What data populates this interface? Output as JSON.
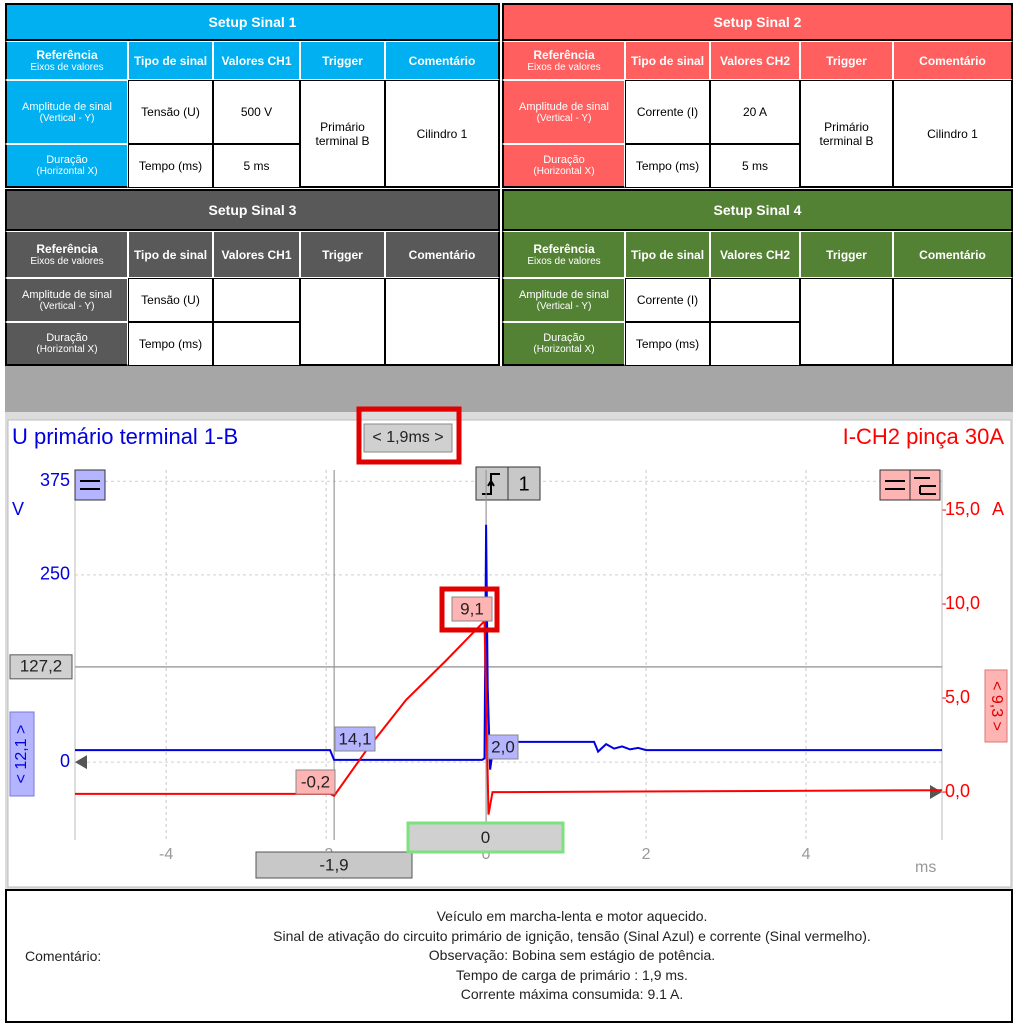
{
  "setups": [
    {
      "title": "Setup Sinal 1",
      "color": "#00b0f0",
      "ref_header": {
        "title": "Referência",
        "sub": "Eixos de valores"
      },
      "columns": [
        "Tipo de sinal",
        "Valores CH1",
        "Trigger",
        "Comentário"
      ],
      "rows": [
        {
          "ref": "Amplitude de sinal",
          "ref_sub": "(Vertical - Y)",
          "type": "Tensão (U)",
          "value": "500 V"
        },
        {
          "ref": "Duração",
          "ref_sub": "(Horizontal X)",
          "type": "Tempo (ms)",
          "value": "5 ms"
        }
      ],
      "trigger": "Primário terminal B",
      "comment": "Cilindro 1"
    },
    {
      "title": "Setup Sinal 2",
      "color": "#ff5f5f",
      "ref_header": {
        "title": "Referência",
        "sub": "Eixos de valores"
      },
      "columns": [
        "Tipo de sinal",
        "Valores CH2",
        "Trigger",
        "Comentário"
      ],
      "rows": [
        {
          "ref": "Amplitude de sinal",
          "ref_sub": "(Vertical - Y)",
          "type": "Corrente (I)",
          "value": "20 A"
        },
        {
          "ref": "Duração",
          "ref_sub": "(Horizontal X)",
          "type": "Tempo (ms)",
          "value": "5 ms"
        }
      ],
      "trigger": "Primário terminal B",
      "comment": "Cilindro 1"
    },
    {
      "title": "Setup Sinal 3",
      "color": "#595959",
      "ref_header": {
        "title": "Referência",
        "sub": "Eixos de valores"
      },
      "columns": [
        "Tipo de sinal",
        "Valores CH1",
        "Trigger",
        "Comentário"
      ],
      "rows": [
        {
          "ref": "Amplitude de sinal",
          "ref_sub": "(Vertical - Y)",
          "type": "Tensão (U)"
        },
        {
          "ref": "Duração",
          "ref_sub": "(Horizontal X)",
          "type": "Tempo (ms)"
        }
      ]
    },
    {
      "title": "Setup Sinal 4",
      "color": "#548235",
      "ref_header": {
        "title": "Referência",
        "sub": "Eixos de valores"
      },
      "columns": [
        "Tipo de sinal",
        "Valores CH2",
        "Trigger",
        "Comentário"
      ],
      "rows": [
        {
          "ref": "Amplitude de sinal",
          "ref_sub": "(Vertical - Y)",
          "type": "Corrente (I)"
        },
        {
          "ref": "Duração",
          "ref_sub": "(Horizontal X)",
          "type": "Tempo (ms)"
        }
      ]
    }
  ],
  "chart_data": {
    "type": "line",
    "x_label": "ms",
    "y_label": "V",
    "y2_label": "A",
    "trigger_label": "1",
    "xlim": [
      -5.14,
      5.7
    ],
    "xticks": [
      -4,
      -2,
      0,
      2,
      4
    ],
    "ylim": [
      -104,
      390
    ],
    "yticks": [
      0,
      250,
      375
    ],
    "y2lim": [
      -2.55,
      17.13
    ],
    "y2ticks": [
      {
        "value": 0,
        "label": "0,0"
      },
      {
        "value": 5,
        "label": "5,0"
      },
      {
        "value": 10,
        "label": "10,0"
      },
      {
        "value": 15,
        "label": "15,0"
      }
    ],
    "grid": true,
    "series": [
      {
        "name": "U primário terminal 1-B",
        "color": "#0000e0",
        "x": [
          -5.14,
          -1.95,
          -1.9,
          -0.05,
          -0.02,
          0.0,
          0.02,
          0.05,
          0.1,
          1.35,
          1.4,
          1.5,
          1.6,
          1.7,
          1.8,
          1.9,
          2.0,
          5.7
        ],
        "values": [
          16,
          16,
          3,
          3,
          5,
          317,
          100,
          -10,
          27,
          27,
          14,
          24,
          18,
          21,
          17,
          19,
          16,
          16
        ]
      },
      {
        "name": "I-CH2 pinça 30A",
        "color": "#ff0000",
        "axis": "y2",
        "x": [
          -5.14,
          -1.95,
          -1.9,
          -1.5,
          -1.0,
          -0.5,
          -0.02,
          0.0,
          0.03,
          0.08,
          0.2,
          5.7
        ],
        "values": [
          -0.1,
          -0.1,
          -0.2,
          2.2,
          4.9,
          7.0,
          9.1,
          5,
          -1.2,
          0,
          0,
          0.1
        ]
      }
    ],
    "cursors": {
      "x": [
        {
          "value": -1.9,
          "label": "-1,9"
        },
        {
          "value": 0,
          "label": "0"
        }
      ],
      "x_delta": "< 1,9ms >",
      "y": {
        "value": 127.2,
        "label": "127,2"
      },
      "y_delta": "< 12,1 >",
      "y2_delta": "< 9,3 >"
    },
    "markers": [
      {
        "value": 14.1,
        "label": "14,1"
      },
      {
        "value": -0.2,
        "label": "-0,2"
      },
      {
        "value": 2.0,
        "label": "2,0"
      },
      {
        "value": 9.1,
        "label": "9,1"
      }
    ]
  },
  "comment": {
    "label": "Comentário:",
    "lines": [
      "Veículo em marcha-lenta e motor aquecido.",
      "Sinal de ativação do circuito primário de ignição, tensão (Sinal Azul) e corrente (Sinal vermelho).",
      "Observação: Bobina sem estágio de potência.",
      "Tempo de carga de primário : 1,9 ms.",
      "Corrente máxima consumida: 9.1 A."
    ]
  }
}
